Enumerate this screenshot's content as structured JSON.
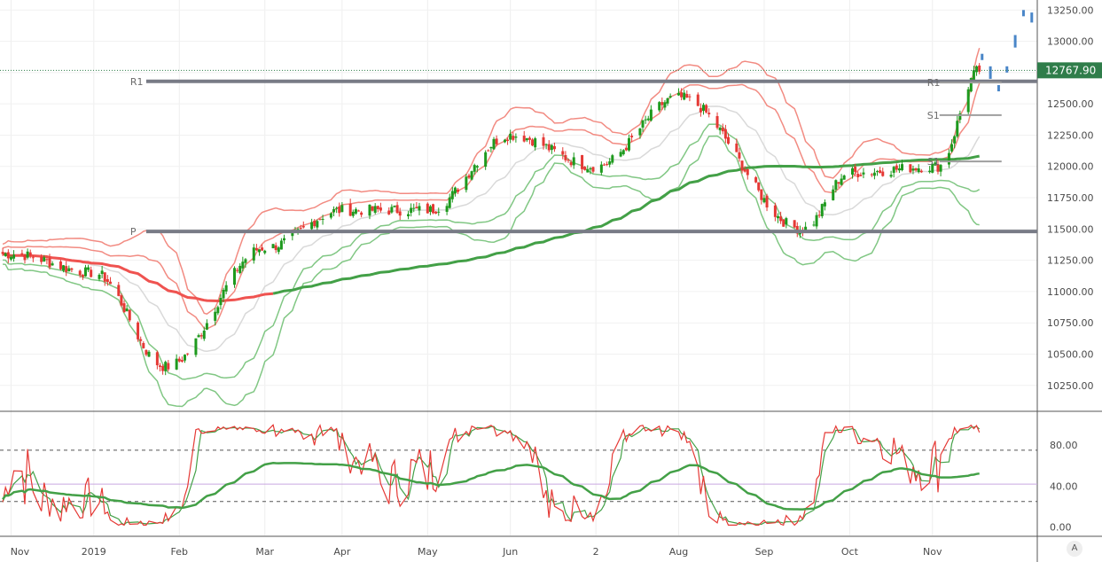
{
  "chart_data": [
    {
      "type": "candlestick",
      "panel": "price",
      "title": "",
      "ylim": [
        10050,
        13330
      ],
      "y_ticks": [
        "13250.00",
        "13000.00",
        "12750.00",
        "12500.00",
        "12250.00",
        "12000.00",
        "11750.00",
        "11500.00",
        "11250.00",
        "11000.00",
        "10750.00",
        "10500.00",
        "10250.00"
      ],
      "last_price": "12767.90",
      "pivot_levels": [
        {
          "label": "R1",
          "value": 12680
        },
        {
          "label": "P",
          "value": 11480
        },
        {
          "label": "R1",
          "value": 12670
        },
        {
          "label": "S1",
          "value": 12410
        },
        {
          "label": "S1",
          "value": 12040
        }
      ],
      "key_points": [
        {
          "date": "2018-11-01",
          "close": 11300
        },
        {
          "date": "2018-12-01",
          "close": 11150
        },
        {
          "date": "2018-12-27",
          "close": 10400
        },
        {
          "date": "2019-02-01",
          "close": 11350
        },
        {
          "date": "2019-03-01",
          "close": 11650
        },
        {
          "date": "2019-04-01",
          "close": 11650
        },
        {
          "date": "2019-05-01",
          "close": 12250
        },
        {
          "date": "2019-06-01",
          "close": 12000
        },
        {
          "date": "2019-07-01",
          "close": 12550
        },
        {
          "date": "2019-08-15",
          "close": 11500
        },
        {
          "date": "2019-09-01",
          "close": 11950
        },
        {
          "date": "2019-10-03",
          "close": 12000
        },
        {
          "date": "2019-10-18",
          "close": 12767.9
        }
      ],
      "colors": {
        "up": "#1e9a1e",
        "down": "#e53935",
        "band_upper": "#f28b82",
        "band_lower": "#81c784",
        "ma_red": "#ef5350",
        "ma_green": "#43a047",
        "forecast": "#4a86c8",
        "level_line": "#787b86"
      }
    },
    {
      "type": "line",
      "panel": "oscillator",
      "title": "",
      "ylim": [
        -8,
        112
      ],
      "y_ticks": [
        "80.00",
        "40.00",
        "0.00"
      ],
      "guide_levels": [
        75,
        25
      ],
      "mid_level": 42,
      "series_colors": {
        "fast": "#e53935",
        "slow": "#43a047"
      }
    }
  ],
  "x_axis": {
    "labels": [
      "Nov",
      "2019",
      "Feb",
      "Mar",
      "Apr",
      "May",
      "Jun",
      "2",
      "Aug",
      "Sep",
      "Oct",
      "Nov"
    ]
  },
  "corner_button": "A"
}
